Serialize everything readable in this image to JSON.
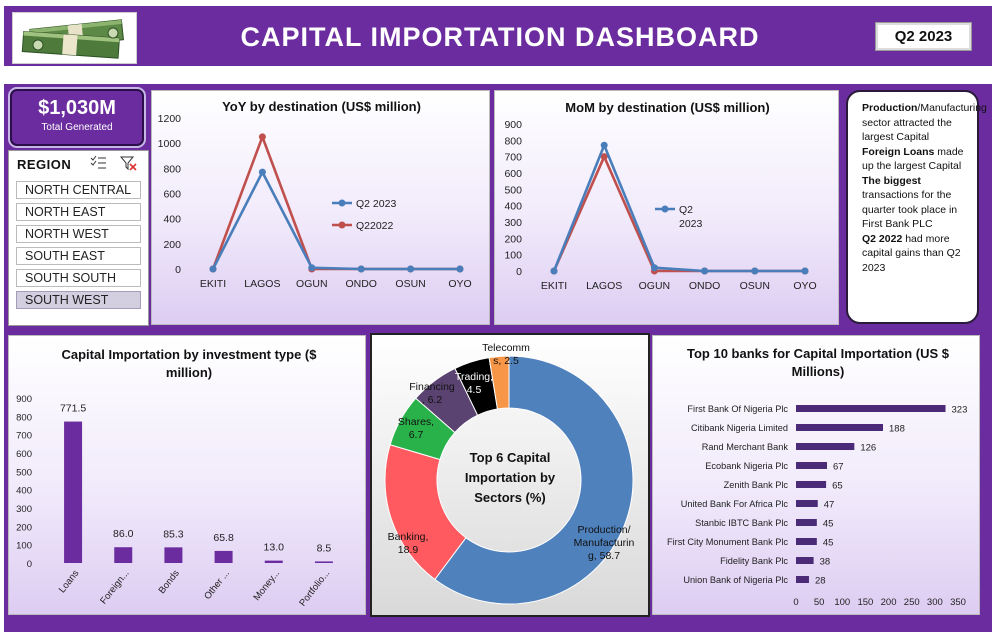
{
  "header": {
    "title": "CAPITAL IMPORTATION DASHBOARD",
    "quarter_button": "Q2 2023"
  },
  "kpi": {
    "value": "$1,030M",
    "label": "Total Generated"
  },
  "region_slicer": {
    "title": "REGION",
    "items": [
      "NORTH CENTRAL",
      "NORTH EAST",
      "NORTH WEST",
      "SOUTH EAST",
      "SOUTH SOUTH",
      "SOUTH WEST"
    ],
    "selected": "SOUTH WEST"
  },
  "notes": {
    "items": [
      {
        "bold": "Production",
        "text": "/Manufacturing sector attracted the largest Capital"
      },
      {
        "bold": "Foreign Loans",
        "text": " made up the largest Capital"
      },
      {
        "bold": "The biggest",
        "text": " transactions for the quarter took place in First Bank PLC"
      },
      {
        "bold": "Q2 2022",
        "text": " had more capital gains than Q2 2023"
      }
    ]
  },
  "colors": {
    "purple": "#6a2c9e",
    "blue": "#4a7ebb",
    "red": "#c0504d",
    "orange": "#f79646",
    "green": "#2ab24a",
    "pink": "#ff5a5f",
    "dark_purple": "#5a4370",
    "black": "#000000"
  },
  "chart_data": [
    {
      "id": "yoy",
      "type": "line",
      "title": "YoY by destination (US$ million)",
      "categories": [
        "EKITI",
        "LAGOS",
        "OGUN",
        "ONDO",
        "OSUN",
        "OYO"
      ],
      "series": [
        {
          "name": "Q2 2023",
          "values": [
            0,
            770,
            10,
            0,
            0,
            0
          ]
        },
        {
          "name": "Q22022",
          "values": [
            0,
            1050,
            0,
            0,
            0,
            0
          ]
        }
      ],
      "ylim": [
        0,
        1200
      ],
      "yticks": [
        0,
        200,
        400,
        600,
        800,
        1000,
        1200
      ]
    },
    {
      "id": "mom",
      "type": "line",
      "title": "MoM by destination (US$ million)",
      "categories": [
        "EKITI",
        "LAGOS",
        "OGUN",
        "ONDO",
        "OSUN",
        "OYO"
      ],
      "series": [
        {
          "name": "Q2 2023",
          "values": [
            0,
            770,
            20,
            0,
            0,
            0
          ]
        },
        {
          "name": "",
          "values": [
            0,
            700,
            0,
            0,
            0,
            0
          ]
        }
      ],
      "ylim": [
        0,
        900
      ],
      "yticks": [
        0,
        100,
        200,
        300,
        400,
        500,
        600,
        700,
        800,
        900
      ]
    },
    {
      "id": "investment",
      "type": "bar",
      "title": "Capital Importation by investment type ($ million)",
      "categories": [
        "Loans",
        "Foreign...",
        "Bonds",
        "Other ...",
        "Money...",
        "Portfolio..."
      ],
      "values": [
        771.5,
        86.0,
        85.3,
        65.8,
        13.0,
        8.5
      ],
      "labels": [
        "771.5",
        "86.0",
        "85.3",
        "65.8",
        "13.0",
        "8.5"
      ],
      "ylim": [
        0,
        900
      ],
      "yticks": [
        0,
        100,
        200,
        300,
        400,
        500,
        600,
        700,
        800,
        900
      ]
    },
    {
      "id": "sectors",
      "type": "pie",
      "title": "Top 6 Capital Importation by Sectors (%)",
      "slices": [
        {
          "name": "Production/ Manufacturing",
          "value": 58.7,
          "label": "Production/ Manufacturin g, 58.7"
        },
        {
          "name": "Banking",
          "value": 18.9,
          "label": "Banking, 18.9"
        },
        {
          "name": "Shares",
          "value": 6.7,
          "label": "Shares, 6.7"
        },
        {
          "name": "Financing",
          "value": 6.2,
          "label": "Financing , 6.2"
        },
        {
          "name": "Trading",
          "value": 4.5,
          "label": "Trading, 4.5"
        },
        {
          "name": "Telecomms",
          "value": 2.5,
          "label": "Telecomm s, 2.5"
        }
      ]
    },
    {
      "id": "banks",
      "type": "bar",
      "orientation": "horizontal",
      "title": "Top 10 banks for Capital Importation (US $ Millions)",
      "categories": [
        "First Bank Of Nigeria Plc",
        "Citibank Nigeria Limited",
        "Rand Merchant Bank",
        "Ecobank Nigeria Plc",
        "Zenith Bank Plc",
        "United Bank For Africa Plc",
        "Stanbic IBTC Bank Plc",
        "First City Monument Bank Plc",
        "Fidelity Bank Plc",
        "Union Bank of Nigeria Plc"
      ],
      "values": [
        323,
        188,
        126,
        67,
        65,
        47,
        45,
        45,
        38,
        28
      ],
      "xlim": [
        0,
        350
      ],
      "xticks": [
        0,
        50,
        100,
        150,
        200,
        250,
        300,
        350
      ]
    }
  ]
}
